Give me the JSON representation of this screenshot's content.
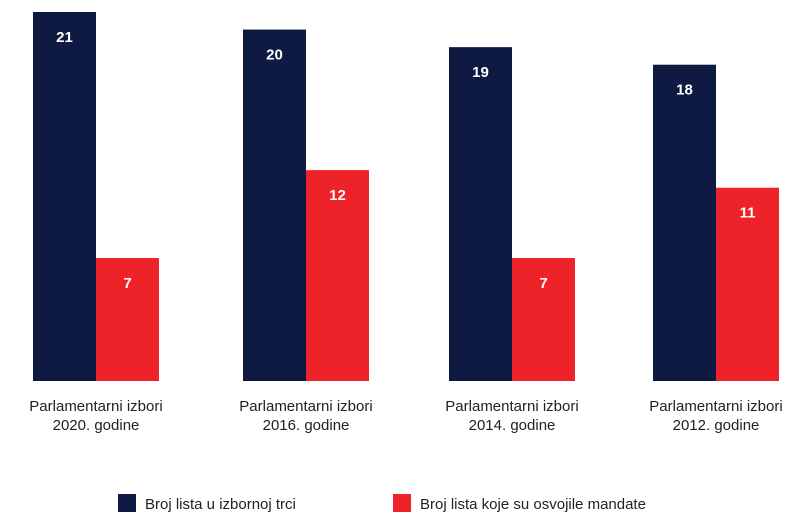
{
  "chart_data": {
    "type": "bar",
    "categories": [
      "Parlamentarni izbori\n2020. godine",
      "Parlamentarni izbori\n2016. godine",
      "Parlamentarni izbori\n2014. godine",
      "Parlamentarni izbori\n2012. godine"
    ],
    "series": [
      {
        "name": "Broj lista u izbornoj trci",
        "color": "#0f1a42",
        "values": [
          21,
          20,
          19,
          18
        ]
      },
      {
        "name": "Broj lista koje su osvojile mandate",
        "color": "#ee2229",
        "values": [
          7,
          12,
          7,
          11
        ]
      }
    ],
    "ylim": [
      0,
      21
    ],
    "legend": "bottom"
  }
}
